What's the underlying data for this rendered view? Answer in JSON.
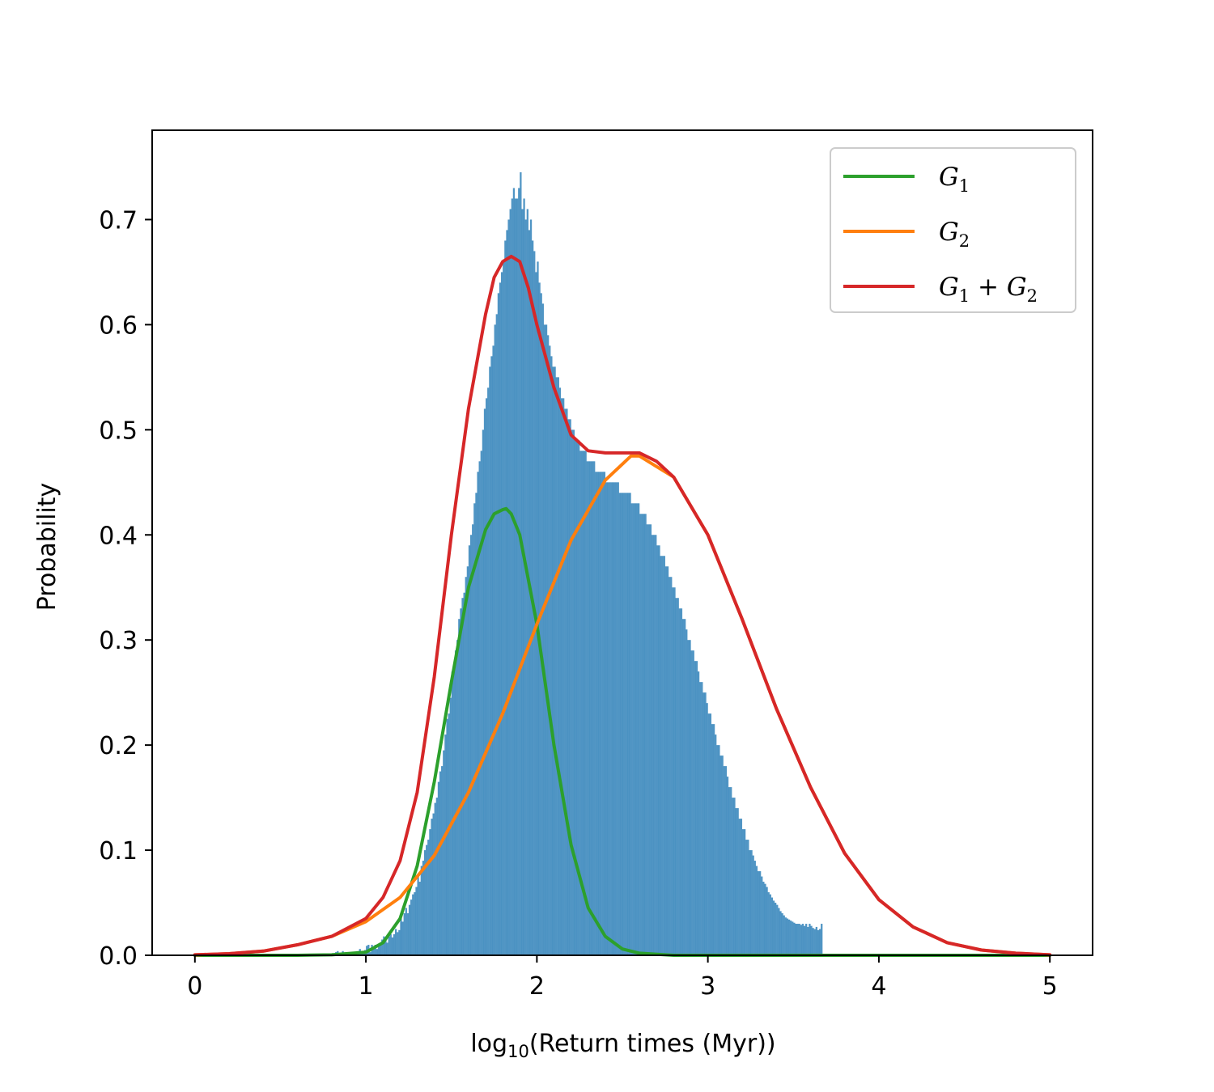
{
  "chart_data": {
    "type": "histogram_with_lines",
    "xlabel": {
      "prefix": "log",
      "subscript": "10",
      "suffix": "(Return times (Myr))"
    },
    "ylabel": "Probability",
    "xlim": [
      -0.25,
      5.25
    ],
    "ylim": [
      0.0,
      0.785
    ],
    "xticks": [
      0,
      1,
      2,
      3,
      4,
      5
    ],
    "xtick_labels": [
      "0",
      "1",
      "2",
      "3",
      "4",
      "5"
    ],
    "yticks": [
      0.0,
      0.1,
      0.2,
      0.3,
      0.4,
      0.5,
      0.6,
      0.7
    ],
    "ytick_labels": [
      "0.0",
      "0.1",
      "0.2",
      "0.3",
      "0.4",
      "0.5",
      "0.6",
      "0.7"
    ],
    "legend_position": "top-right",
    "histogram": {
      "color": "#1f77b4",
      "bin_start": 0.8,
      "bin_width": 0.01,
      "heights": [
        0.002,
        0.0,
        0.003,
        0.004,
        0.0,
        0.002,
        0.004,
        0.0,
        0.002,
        0.003,
        0.001,
        0.0,
        0.002,
        0.003,
        0.0,
        0.004,
        0.006,
        0.004,
        0.003,
        0.005,
        0.009,
        0.01,
        0.003,
        0.01,
        0.008,
        0.01,
        0.006,
        0.01,
        0.012,
        0.015,
        0.018,
        0.016,
        0.012,
        0.018,
        0.02,
        0.017,
        0.02,
        0.025,
        0.022,
        0.024,
        0.035,
        0.032,
        0.04,
        0.045,
        0.04,
        0.048,
        0.053,
        0.058,
        0.06,
        0.065,
        0.075,
        0.07,
        0.085,
        0.09,
        0.1,
        0.105,
        0.11,
        0.12,
        0.13,
        0.135,
        0.145,
        0.15,
        0.165,
        0.175,
        0.18,
        0.195,
        0.21,
        0.225,
        0.23,
        0.245,
        0.27,
        0.27,
        0.29,
        0.3,
        0.32,
        0.33,
        0.34,
        0.345,
        0.36,
        0.37,
        0.39,
        0.4,
        0.41,
        0.43,
        0.44,
        0.46,
        0.47,
        0.48,
        0.5,
        0.52,
        0.53,
        0.54,
        0.56,
        0.57,
        0.58,
        0.6,
        0.61,
        0.63,
        0.64,
        0.65,
        0.66,
        0.68,
        0.69,
        0.7,
        0.71,
        0.72,
        0.73,
        0.72,
        0.72,
        0.73,
        0.745,
        0.71,
        0.72,
        0.7,
        0.71,
        0.69,
        0.7,
        0.68,
        0.67,
        0.65,
        0.66,
        0.64,
        0.63,
        0.62,
        0.6,
        0.6,
        0.59,
        0.58,
        0.57,
        0.56,
        0.56,
        0.55,
        0.55,
        0.54,
        0.53,
        0.53,
        0.52,
        0.52,
        0.51,
        0.51,
        0.5,
        0.5,
        0.49,
        0.49,
        0.49,
        0.48,
        0.48,
        0.48,
        0.48,
        0.47,
        0.47,
        0.47,
        0.47,
        0.47,
        0.46,
        0.46,
        0.46,
        0.46,
        0.46,
        0.46,
        0.45,
        0.45,
        0.45,
        0.45,
        0.45,
        0.45,
        0.45,
        0.45,
        0.44,
        0.44,
        0.44,
        0.44,
        0.44,
        0.44,
        0.44,
        0.43,
        0.43,
        0.43,
        0.43,
        0.43,
        0.42,
        0.42,
        0.42,
        0.42,
        0.41,
        0.41,
        0.41,
        0.4,
        0.4,
        0.4,
        0.39,
        0.39,
        0.38,
        0.38,
        0.38,
        0.37,
        0.37,
        0.36,
        0.36,
        0.35,
        0.35,
        0.34,
        0.34,
        0.33,
        0.33,
        0.32,
        0.32,
        0.31,
        0.3,
        0.3,
        0.29,
        0.29,
        0.28,
        0.28,
        0.27,
        0.26,
        0.26,
        0.25,
        0.25,
        0.24,
        0.23,
        0.23,
        0.22,
        0.22,
        0.21,
        0.2,
        0.2,
        0.19,
        0.19,
        0.18,
        0.18,
        0.17,
        0.16,
        0.16,
        0.15,
        0.15,
        0.14,
        0.14,
        0.13,
        0.13,
        0.12,
        0.12,
        0.11,
        0.11,
        0.1,
        0.1,
        0.095,
        0.09,
        0.085,
        0.08,
        0.08,
        0.075,
        0.07,
        0.068,
        0.065,
        0.06,
        0.058,
        0.055,
        0.052,
        0.05,
        0.048,
        0.045,
        0.042,
        0.04,
        0.038,
        0.036,
        0.035,
        0.034,
        0.033,
        0.032,
        0.031,
        0.03,
        0.03,
        0.03,
        0.029,
        0.03,
        0.028,
        0.03,
        0.027,
        0.03,
        0.028,
        0.026,
        0.025,
        0.027,
        0.024,
        0.025,
        0.03
      ]
    },
    "series": [
      {
        "name": "G_1",
        "color": "#2ca02c",
        "x": [
          0.0,
          0.2,
          0.4,
          0.6,
          0.8,
          1.0,
          1.1,
          1.2,
          1.3,
          1.4,
          1.5,
          1.6,
          1.7,
          1.75,
          1.8,
          1.82,
          1.85,
          1.9,
          2.0,
          2.1,
          2.2,
          2.3,
          2.4,
          2.5,
          2.6,
          2.8,
          3.0,
          3.5,
          4.0,
          4.5,
          5.0
        ],
        "y": [
          0.0,
          0.0,
          0.0,
          0.0,
          0.0005,
          0.003,
          0.012,
          0.035,
          0.085,
          0.165,
          0.26,
          0.35,
          0.405,
          0.42,
          0.424,
          0.425,
          0.42,
          0.4,
          0.315,
          0.2,
          0.105,
          0.045,
          0.018,
          0.006,
          0.002,
          0.0,
          0.0,
          0.0,
          0.0,
          0.0,
          0.0
        ]
      },
      {
        "name": "G_2",
        "color": "#ff7f0e",
        "x": [
          0.0,
          0.2,
          0.4,
          0.6,
          0.8,
          1.0,
          1.2,
          1.4,
          1.6,
          1.8,
          2.0,
          2.2,
          2.4,
          2.55,
          2.6,
          2.8,
          3.0,
          3.2,
          3.4,
          3.6,
          3.8,
          4.0,
          4.2,
          4.4,
          4.6,
          4.8,
          5.0
        ],
        "y": [
          0.0005,
          0.0015,
          0.004,
          0.01,
          0.018,
          0.032,
          0.055,
          0.095,
          0.155,
          0.23,
          0.315,
          0.395,
          0.452,
          0.475,
          0.475,
          0.455,
          0.4,
          0.32,
          0.235,
          0.16,
          0.097,
          0.053,
          0.027,
          0.012,
          0.005,
          0.002,
          0.0005
        ]
      },
      {
        "name": "G_1 + G_2",
        "color": "#d62728",
        "x": [
          0.0,
          0.2,
          0.4,
          0.6,
          0.8,
          1.0,
          1.1,
          1.2,
          1.3,
          1.4,
          1.5,
          1.6,
          1.7,
          1.75,
          1.8,
          1.85,
          1.9,
          1.95,
          2.0,
          2.1,
          2.2,
          2.3,
          2.4,
          2.5,
          2.6,
          2.7,
          2.8,
          3.0,
          3.2,
          3.4,
          3.6,
          3.8,
          4.0,
          4.2,
          4.4,
          4.6,
          4.8,
          5.0
        ],
        "y": [
          0.0005,
          0.0015,
          0.004,
          0.01,
          0.018,
          0.035,
          0.055,
          0.09,
          0.155,
          0.265,
          0.4,
          0.52,
          0.61,
          0.645,
          0.66,
          0.665,
          0.66,
          0.635,
          0.6,
          0.54,
          0.495,
          0.48,
          0.478,
          0.478,
          0.478,
          0.47,
          0.455,
          0.4,
          0.32,
          0.235,
          0.16,
          0.097,
          0.053,
          0.027,
          0.012,
          0.005,
          0.002,
          0.0005
        ]
      }
    ],
    "legend": [
      {
        "base": "G",
        "sub": "1",
        "color": "#2ca02c"
      },
      {
        "base": "G",
        "sub": "2",
        "color": "#ff7f0e"
      },
      {
        "base": "G",
        "sub": "1",
        "plus": " + ",
        "base2": "G",
        "sub2": "2",
        "color": "#d62728"
      }
    ]
  }
}
